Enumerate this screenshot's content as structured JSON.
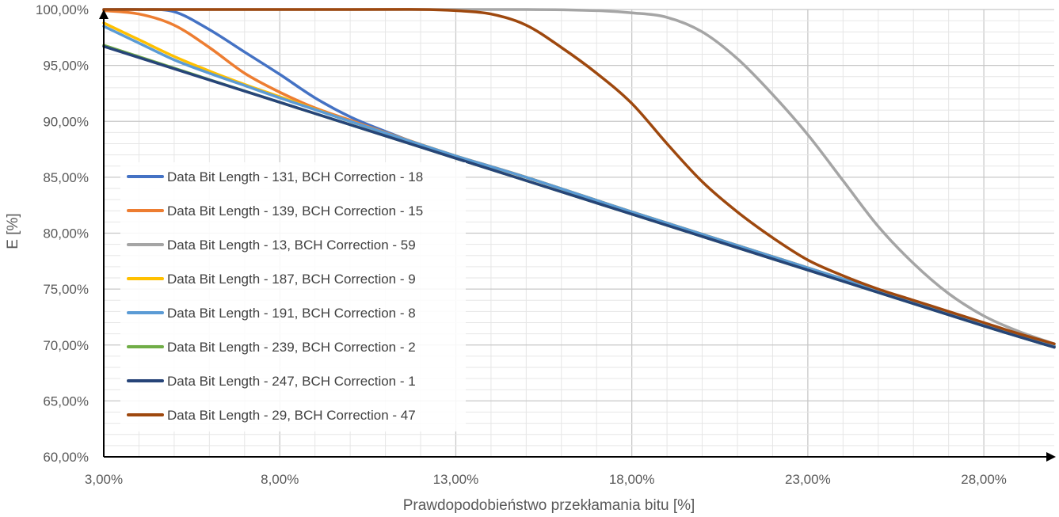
{
  "chart_data": {
    "type": "line",
    "title": "",
    "xlabel": "Prawdopodobieństwo przekłamania bitu [%]",
    "ylabel": "E [%]",
    "xlim": [
      3,
      30
    ],
    "ylim": [
      60,
      100
    ],
    "x_ticks": [
      "3,00%",
      "8,00%",
      "13,00%",
      "18,00%",
      "23,00%",
      "28,00%"
    ],
    "y_ticks": [
      "60,00%",
      "65,00%",
      "70,00%",
      "75,00%",
      "80,00%",
      "85,00%",
      "90,00%",
      "95,00%",
      "100,00%"
    ],
    "grid": true,
    "legend_position": "left-middle",
    "series": [
      {
        "name": "Data Bit Length - 131, BCH Correction - 18",
        "color": "#4472C4",
        "points": [
          [
            3,
            100
          ],
          [
            4,
            100
          ],
          [
            5,
            99.8
          ],
          [
            6,
            98.2
          ],
          [
            7,
            96.2
          ],
          [
            8,
            94.2
          ],
          [
            9,
            92.1
          ],
          [
            10,
            90.4
          ],
          [
            11,
            89.1
          ],
          [
            12,
            87.9
          ],
          [
            13,
            86.9
          ],
          [
            15,
            85.0
          ],
          [
            18,
            81.9
          ],
          [
            21,
            78.9
          ],
          [
            24,
            75.9
          ],
          [
            27,
            72.9
          ],
          [
            30,
            69.9
          ]
        ]
      },
      {
        "name": "Data Bit Length - 139, BCH Correction - 15",
        "color": "#ED7D31",
        "points": [
          [
            3,
            99.9
          ],
          [
            4,
            99.6
          ],
          [
            5,
            98.6
          ],
          [
            6,
            96.6
          ],
          [
            7,
            94.3
          ],
          [
            8,
            92.6
          ],
          [
            9,
            91.2
          ],
          [
            10,
            90.1
          ],
          [
            11,
            89.0
          ],
          [
            13,
            86.9
          ],
          [
            15,
            85.0
          ],
          [
            18,
            81.9
          ],
          [
            21,
            78.9
          ],
          [
            24,
            75.9
          ],
          [
            27,
            72.9
          ],
          [
            30,
            69.9
          ]
        ]
      },
      {
        "name": "Data Bit Length - 13, BCH Correction - 59",
        "color": "#A5A5A5",
        "points": [
          [
            3,
            100
          ],
          [
            10,
            100
          ],
          [
            15,
            100
          ],
          [
            17,
            99.9
          ],
          [
            18,
            99.7
          ],
          [
            19,
            99.3
          ],
          [
            20,
            98.0
          ],
          [
            21,
            95.6
          ],
          [
            22,
            92.4
          ],
          [
            23,
            88.8
          ],
          [
            24,
            84.7
          ],
          [
            25,
            80.6
          ],
          [
            26,
            77.3
          ],
          [
            27,
            74.6
          ],
          [
            28,
            72.6
          ],
          [
            29,
            71.2
          ],
          [
            30,
            70.1
          ]
        ]
      },
      {
        "name": "Data Bit Length - 187, BCH Correction - 9",
        "color": "#FFC000",
        "points": [
          [
            3,
            98.8
          ],
          [
            4,
            97.3
          ],
          [
            5,
            95.8
          ],
          [
            6,
            94.5
          ],
          [
            7,
            93.3
          ],
          [
            8,
            92.2
          ],
          [
            10,
            90.0
          ],
          [
            13,
            86.9
          ],
          [
            15,
            85.0
          ],
          [
            18,
            81.9
          ],
          [
            21,
            78.9
          ],
          [
            24,
            75.9
          ],
          [
            27,
            72.9
          ],
          [
            30,
            69.9
          ]
        ]
      },
      {
        "name": "Data Bit Length - 191, BCH Correction - 8",
        "color": "#5B9BD5",
        "points": [
          [
            3,
            98.5
          ],
          [
            4,
            97.0
          ],
          [
            5,
            95.5
          ],
          [
            6,
            94.3
          ],
          [
            7,
            93.2
          ],
          [
            8,
            92.1
          ],
          [
            10,
            90.0
          ],
          [
            13,
            86.9
          ],
          [
            15,
            85.0
          ],
          [
            18,
            81.9
          ],
          [
            21,
            78.9
          ],
          [
            24,
            75.9
          ],
          [
            27,
            72.9
          ],
          [
            30,
            69.9
          ]
        ]
      },
      {
        "name": "Data Bit Length - 239, BCH Correction - 2",
        "color": "#70AD47",
        "points": [
          [
            3,
            96.8
          ],
          [
            8,
            91.7
          ],
          [
            13,
            86.7
          ],
          [
            18,
            81.7
          ],
          [
            23,
            76.7
          ],
          [
            28,
            71.7
          ],
          [
            30,
            69.8
          ]
        ]
      },
      {
        "name": "Data Bit Length - 247, BCH Correction - 1",
        "color": "#264478",
        "points": [
          [
            3,
            96.7
          ],
          [
            8,
            91.7
          ],
          [
            13,
            86.7
          ],
          [
            18,
            81.7
          ],
          [
            23,
            76.7
          ],
          [
            28,
            71.7
          ],
          [
            30,
            69.8
          ]
        ]
      },
      {
        "name": "Data Bit Length - 29, BCH Correction - 47",
        "color": "#9E480E",
        "points": [
          [
            3,
            100
          ],
          [
            10,
            100
          ],
          [
            12,
            100
          ],
          [
            13,
            99.9
          ],
          [
            14,
            99.6
          ],
          [
            15,
            98.6
          ],
          [
            16,
            96.6
          ],
          [
            17,
            94.3
          ],
          [
            18,
            91.6
          ],
          [
            19,
            88.0
          ],
          [
            20,
            84.6
          ],
          [
            21,
            81.9
          ],
          [
            22,
            79.6
          ],
          [
            23,
            77.6
          ],
          [
            24,
            76.2
          ],
          [
            25,
            75.0
          ],
          [
            26,
            74.0
          ],
          [
            27,
            73.0
          ],
          [
            28,
            72.0
          ],
          [
            29,
            71.0
          ],
          [
            30,
            70.1
          ]
        ]
      }
    ]
  }
}
